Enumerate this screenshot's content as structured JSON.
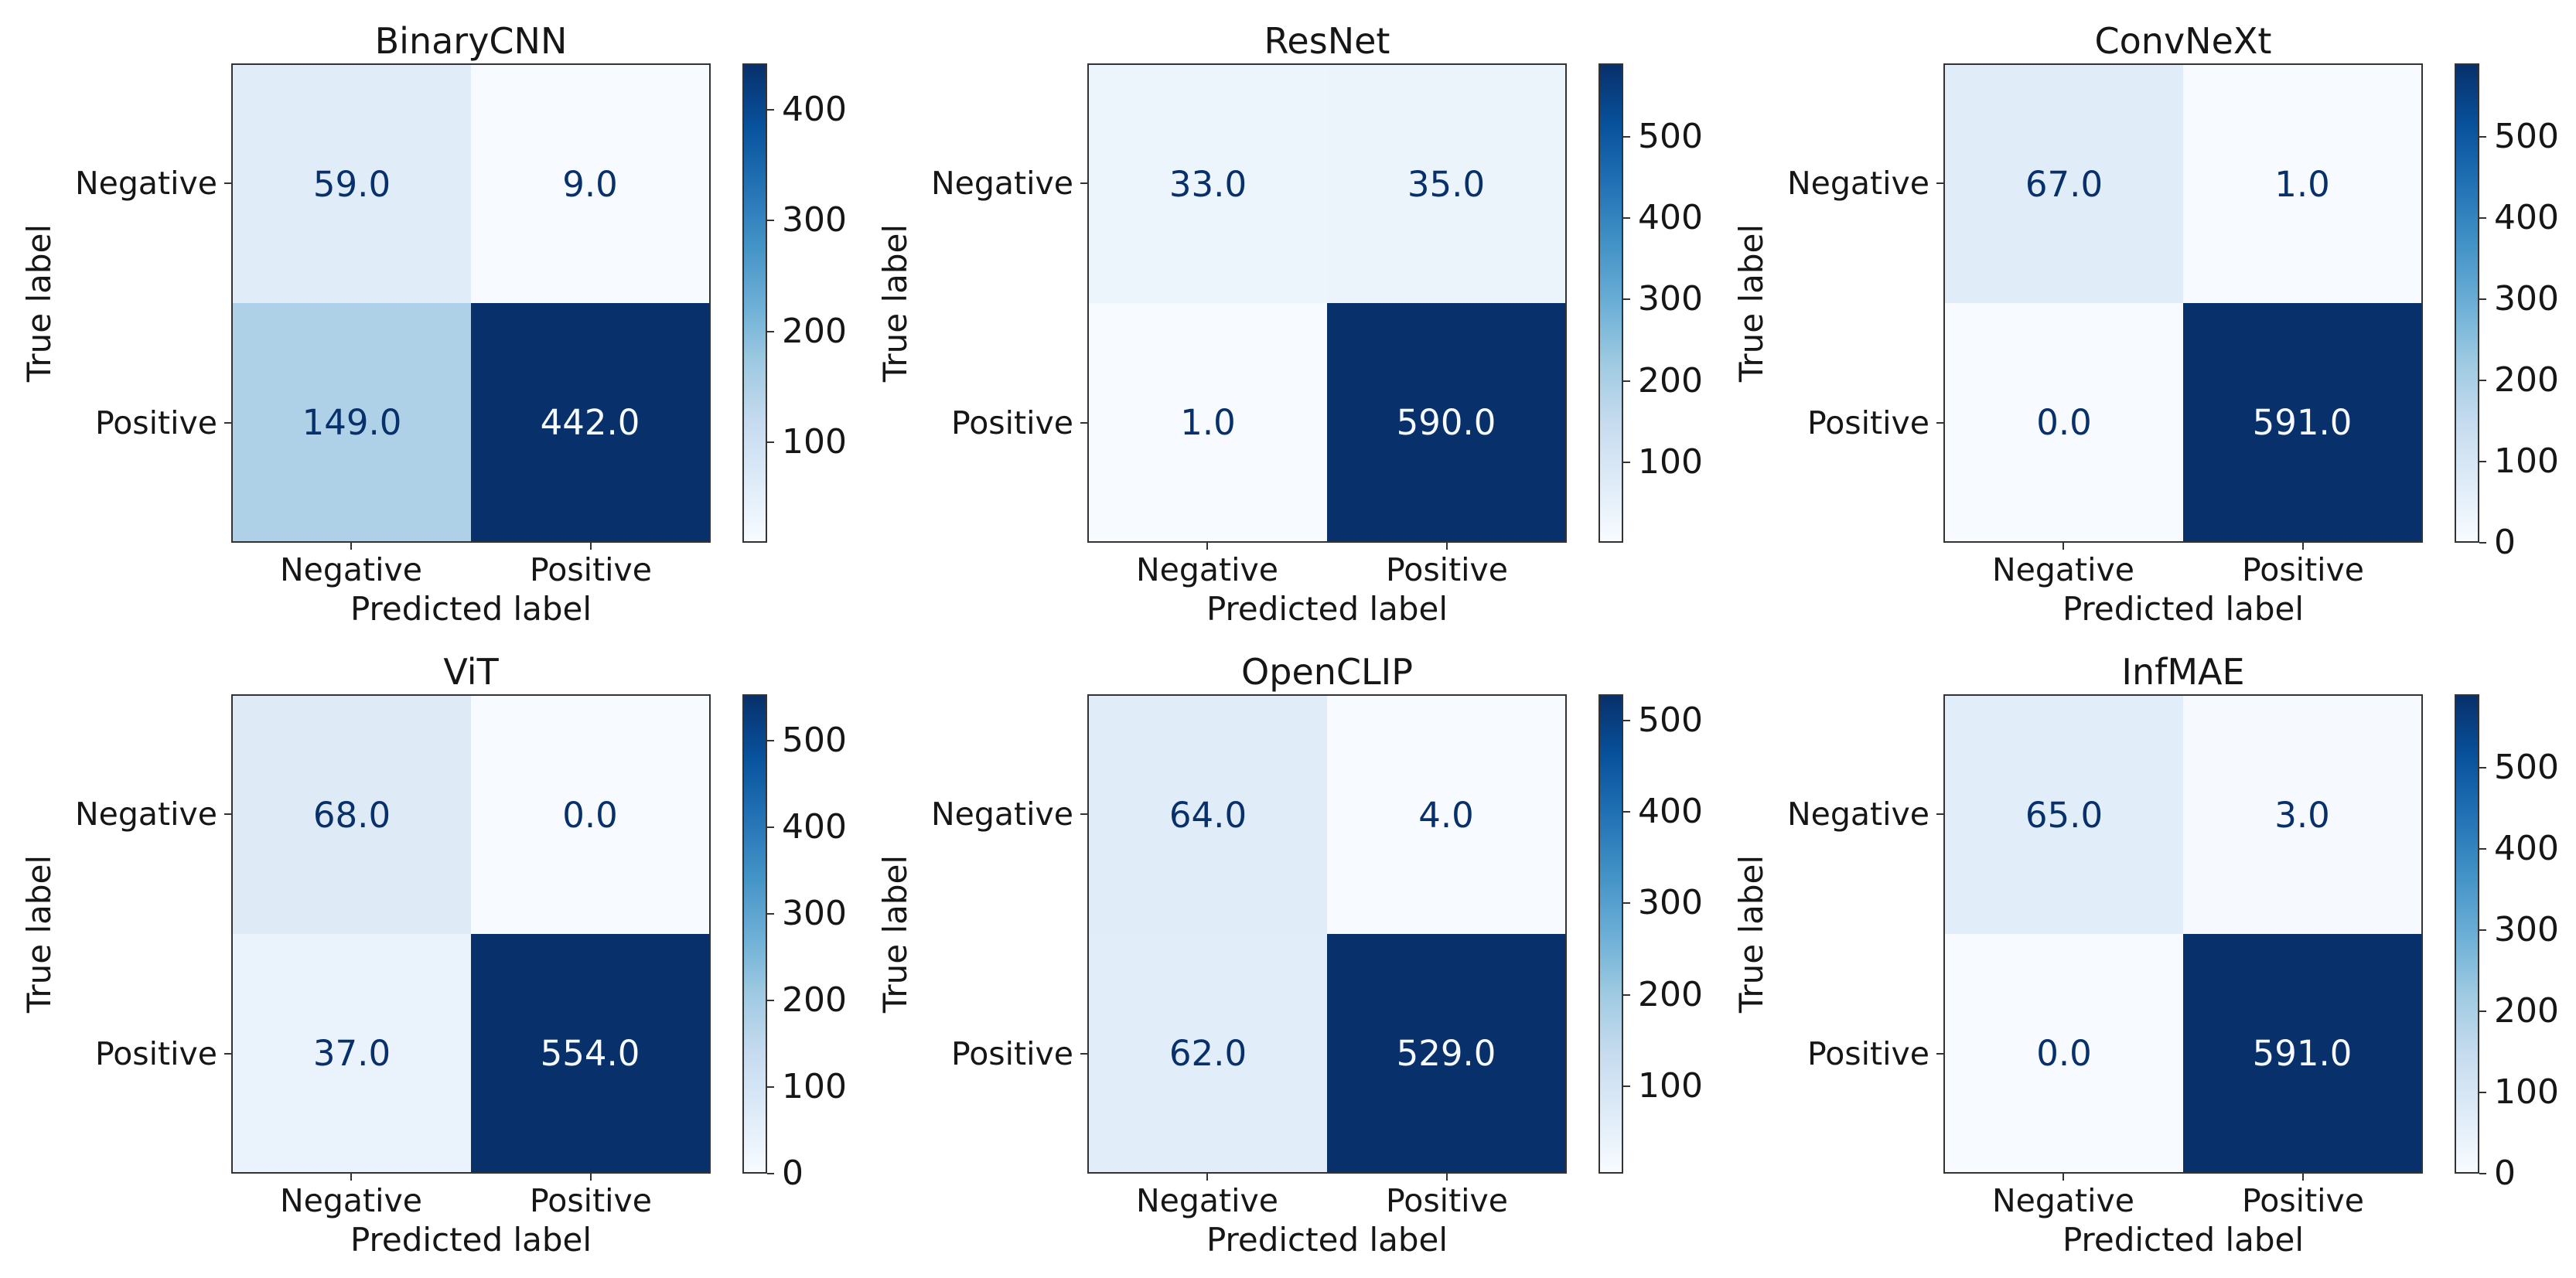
{
  "figure": {
    "background": "#ffffff",
    "colormap_name": "Blues",
    "colormap_anchors": [
      "#f7fbff",
      "#deebf7",
      "#c6dbef",
      "#9ecae1",
      "#6baed6",
      "#4292c6",
      "#2171b5",
      "#08519c",
      "#08306b"
    ],
    "cell_text_color_low": "#08306b",
    "cell_text_color_high": "#f7fbff",
    "axis_edge_color": "#333333",
    "text_color": "#161616",
    "value_format": ".1f"
  },
  "chart_data": [
    {
      "type": "heatmap",
      "title": "BinaryCNN",
      "xlabel": "Predicted label",
      "ylabel": "True label",
      "x_categories": [
        "Negative",
        "Positive"
      ],
      "y_categories": [
        "Negative",
        "Positive"
      ],
      "matrix": [
        [
          59.0,
          9.0
        ],
        [
          149.0,
          442.0
        ]
      ],
      "vmin": 9,
      "vmax": 442,
      "colorbar_ticks": [
        100,
        200,
        300,
        400
      ],
      "legend_position": "right-colorbar",
      "grid": false
    },
    {
      "type": "heatmap",
      "title": "ResNet",
      "xlabel": "Predicted label",
      "ylabel": "True label",
      "x_categories": [
        "Negative",
        "Positive"
      ],
      "y_categories": [
        "Negative",
        "Positive"
      ],
      "matrix": [
        [
          33.0,
          35.0
        ],
        [
          1.0,
          590.0
        ]
      ],
      "vmin": 1,
      "vmax": 590,
      "colorbar_ticks": [
        100,
        200,
        300,
        400,
        500
      ],
      "legend_position": "right-colorbar",
      "grid": false
    },
    {
      "type": "heatmap",
      "title": "ConvNeXt",
      "xlabel": "Predicted label",
      "ylabel": "True label",
      "x_categories": [
        "Negative",
        "Positive"
      ],
      "y_categories": [
        "Negative",
        "Positive"
      ],
      "matrix": [
        [
          67.0,
          1.0
        ],
        [
          0.0,
          591.0
        ]
      ],
      "vmin": 0,
      "vmax": 591,
      "colorbar_ticks": [
        0,
        100,
        200,
        300,
        400,
        500
      ],
      "legend_position": "right-colorbar",
      "grid": false
    },
    {
      "type": "heatmap",
      "title": "ViT",
      "xlabel": "Predicted label",
      "ylabel": "True label",
      "x_categories": [
        "Negative",
        "Positive"
      ],
      "y_categories": [
        "Negative",
        "Positive"
      ],
      "matrix": [
        [
          68.0,
          0.0
        ],
        [
          37.0,
          554.0
        ]
      ],
      "vmin": 0,
      "vmax": 554,
      "colorbar_ticks": [
        0,
        100,
        200,
        300,
        400,
        500
      ],
      "legend_position": "right-colorbar",
      "grid": false
    },
    {
      "type": "heatmap",
      "title": "OpenCLIP",
      "xlabel": "Predicted label",
      "ylabel": "True label",
      "x_categories": [
        "Negative",
        "Positive"
      ],
      "y_categories": [
        "Negative",
        "Positive"
      ],
      "matrix": [
        [
          64.0,
          4.0
        ],
        [
          62.0,
          529.0
        ]
      ],
      "vmin": 4,
      "vmax": 529,
      "colorbar_ticks": [
        100,
        200,
        300,
        400,
        500
      ],
      "legend_position": "right-colorbar",
      "grid": false
    },
    {
      "type": "heatmap",
      "title": "InfMAE",
      "xlabel": "Predicted label",
      "ylabel": "True label",
      "x_categories": [
        "Negative",
        "Positive"
      ],
      "y_categories": [
        "Negative",
        "Positive"
      ],
      "matrix": [
        [
          65.0,
          3.0
        ],
        [
          0.0,
          591.0
        ]
      ],
      "vmin": 0,
      "vmax": 591,
      "colorbar_ticks": [
        0,
        100,
        200,
        300,
        400,
        500
      ],
      "legend_position": "right-colorbar",
      "grid": false
    }
  ]
}
